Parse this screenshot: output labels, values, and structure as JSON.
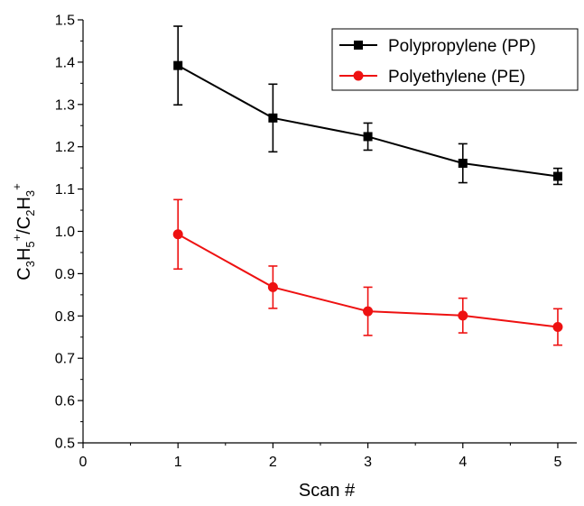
{
  "chart_data": {
    "type": "line",
    "title": "",
    "xlabel": "Scan #",
    "ylabel": {
      "base": "C",
      "sub1": "3",
      "mid1": "H",
      "sub2": "5",
      "sup1": "+",
      "slash": "/C",
      "sub3": "2",
      "mid2": "H",
      "sub4": "3",
      "sup2": "+"
    },
    "xlim": [
      0,
      5.2
    ],
    "ylim": [
      0.5,
      1.5
    ],
    "xticks": [
      0,
      1,
      2,
      3,
      4,
      5
    ],
    "xtick_labels": [
      "0",
      "1",
      "2",
      "3",
      "4",
      "5"
    ],
    "yticks": [
      0.5,
      0.6,
      0.7,
      0.8,
      0.9,
      1.0,
      1.1,
      1.2,
      1.3,
      1.4,
      1.5
    ],
    "ytick_labels": [
      "0.5",
      "0.6",
      "0.7",
      "0.8",
      "0.9",
      "1.0",
      "1.1",
      "1.2",
      "1.3",
      "1.4",
      "1.5"
    ],
    "legend_position": "top-right",
    "grid": false,
    "series": [
      {
        "name": "Polypropylene (PP)",
        "color": "#000000",
        "marker": "square",
        "x": [
          1,
          2,
          3,
          4,
          5
        ],
        "y": [
          1.392,
          1.268,
          1.224,
          1.161,
          1.13
        ],
        "err": [
          0.093,
          0.08,
          0.032,
          0.046,
          0.019
        ]
      },
      {
        "name": "Polyethylene (PE)",
        "color": "#ee1111",
        "marker": "circle",
        "x": [
          1,
          2,
          3,
          4,
          5
        ],
        "y": [
          0.993,
          0.868,
          0.811,
          0.801,
          0.774
        ],
        "err": [
          0.082,
          0.05,
          0.057,
          0.041,
          0.043
        ]
      }
    ]
  }
}
